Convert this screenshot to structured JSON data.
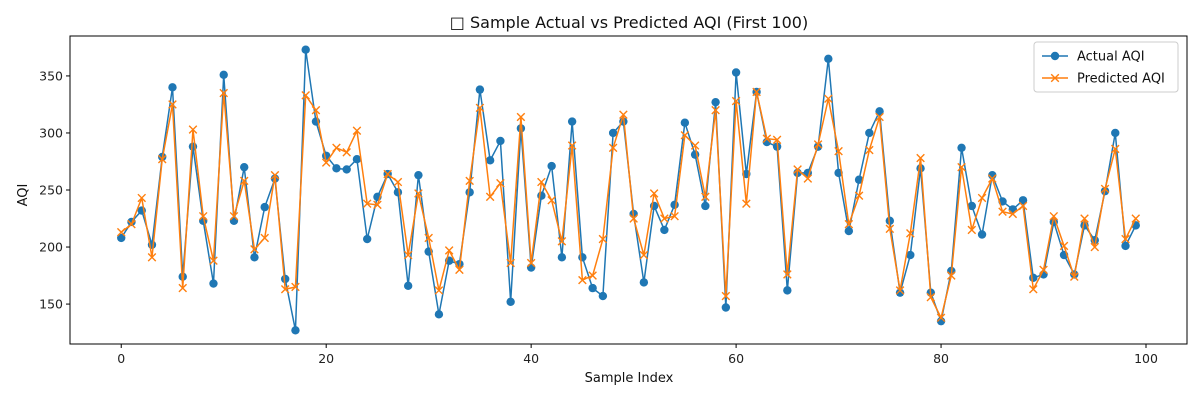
{
  "chart_data": {
    "type": "line",
    "title": "□ Sample Actual vs Predicted AQI (First 100)",
    "xlabel": "Sample Index",
    "ylabel": "AQI",
    "xlim": [
      -5,
      104
    ],
    "ylim": [
      115,
      385
    ],
    "xticks": [
      0,
      20,
      40,
      60,
      80,
      100
    ],
    "yticks": [
      150,
      200,
      250,
      300,
      350
    ],
    "grid": false,
    "legend_position": "top-right",
    "x": [
      0,
      1,
      2,
      3,
      4,
      5,
      6,
      7,
      8,
      9,
      10,
      11,
      12,
      13,
      14,
      15,
      16,
      17,
      18,
      19,
      20,
      21,
      22,
      23,
      24,
      25,
      26,
      27,
      28,
      29,
      30,
      31,
      32,
      33,
      34,
      35,
      36,
      37,
      38,
      39,
      40,
      41,
      42,
      43,
      44,
      45,
      46,
      47,
      48,
      49,
      50,
      51,
      52,
      53,
      54,
      55,
      56,
      57,
      58,
      59,
      60,
      61,
      62,
      63,
      64,
      65,
      66,
      67,
      68,
      69,
      70,
      71,
      72,
      73,
      74,
      75,
      76,
      77,
      78,
      79,
      80,
      81,
      82,
      83,
      84,
      85,
      86,
      87,
      88,
      89,
      90,
      91,
      92,
      93,
      94,
      95,
      96,
      97,
      98,
      99
    ],
    "series": [
      {
        "name": "Actual AQI",
        "color": "#1f77b4",
        "marker": "circle",
        "values": [
          208,
          222,
          232,
          202,
          279,
          340,
          174,
          288,
          223,
          168,
          351,
          223,
          270,
          191,
          235,
          260,
          172,
          127,
          373,
          310,
          280,
          269,
          268,
          277,
          207,
          244,
          264,
          248,
          166,
          263,
          196,
          141,
          188,
          185,
          248,
          338,
          276,
          293,
          152,
          304,
          182,
          245,
          271,
          191,
          310,
          191,
          164,
          157,
          300,
          310,
          229,
          169,
          236,
          215,
          237,
          309,
          281,
          236,
          327,
          147,
          353,
          264,
          336,
          292,
          288,
          162,
          265,
          265,
          288,
          365,
          265,
          214,
          259,
          300,
          319,
          223,
          160,
          193,
          269,
          160,
          135,
          179,
          287,
          236,
          211,
          263,
          240,
          233,
          241,
          173,
          176,
          222,
          193,
          176,
          219,
          206,
          249,
          300,
          201,
          219
        ]
      },
      {
        "name": "Predicted AQI",
        "color": "#ff7f0e",
        "marker": "x",
        "values": [
          213,
          220,
          243,
          191,
          277,
          325,
          164,
          303,
          227,
          188,
          335,
          227,
          258,
          198,
          208,
          263,
          163,
          165,
          333,
          320,
          274,
          287,
          283,
          302,
          238,
          237,
          264,
          257,
          193,
          247,
          208,
          162,
          197,
          180,
          258,
          322,
          244,
          256,
          186,
          314,
          186,
          257,
          241,
          205,
          289,
          171,
          175,
          207,
          287,
          316,
          225,
          193,
          247,
          225,
          227,
          298,
          289,
          244,
          320,
          157,
          328,
          238,
          336,
          295,
          294,
          176,
          268,
          260,
          290,
          330,
          284,
          220,
          245,
          285,
          314,
          216,
          162,
          212,
          278,
          156,
          138,
          175,
          270,
          215,
          243,
          260,
          231,
          229,
          236,
          163,
          180,
          227,
          201,
          174,
          225,
          200,
          251,
          286,
          207,
          225
        ]
      }
    ]
  }
}
